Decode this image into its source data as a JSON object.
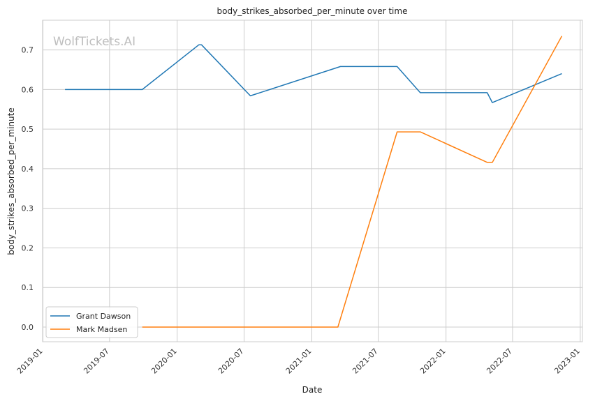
{
  "chart_data": {
    "type": "line",
    "title": "body_strikes_absorbed_per_minute over time",
    "xlabel": "Date",
    "ylabel": "body_strikes_absorbed_per_minute",
    "watermark": "WolfTickets.AI",
    "x_ticks": [
      "2019-01",
      "2019-07",
      "2020-01",
      "2020-07",
      "2021-01",
      "2021-07",
      "2022-01",
      "2022-07",
      "2023-01"
    ],
    "y_ticks": [
      "0.0",
      "0.1",
      "0.2",
      "0.3",
      "0.4",
      "0.5",
      "0.6",
      "0.7"
    ],
    "xlim": [
      "2018-12-31",
      "2023-01-07"
    ],
    "ylim": [
      -0.037,
      0.775
    ],
    "grid": true,
    "legend_position": "lower-left",
    "series": [
      {
        "name": "Grant Dawson",
        "color": "#1f77b4",
        "points": [
          {
            "x": "2019-03-02",
            "y": 0.6
          },
          {
            "x": "2019-09-28",
            "y": 0.6
          },
          {
            "x": "2020-02-29",
            "y": 0.713
          },
          {
            "x": "2020-03-07",
            "y": 0.713
          },
          {
            "x": "2020-07-18",
            "y": 0.584
          },
          {
            "x": "2021-03-20",
            "y": 0.658
          },
          {
            "x": "2021-08-21",
            "y": 0.658
          },
          {
            "x": "2021-10-23",
            "y": 0.592
          },
          {
            "x": "2022-04-23",
            "y": 0.592
          },
          {
            "x": "2022-05-07",
            "y": 0.567
          },
          {
            "x": "2022-11-12",
            "y": 0.64
          }
        ]
      },
      {
        "name": "Mark Madsen",
        "color": "#ff7f0e",
        "points": [
          {
            "x": "2019-09-28",
            "y": 0.0
          },
          {
            "x": "2021-03-13",
            "y": 0.0
          },
          {
            "x": "2021-08-21",
            "y": 0.493
          },
          {
            "x": "2021-10-23",
            "y": 0.493
          },
          {
            "x": "2022-04-23",
            "y": 0.416
          },
          {
            "x": "2022-05-07",
            "y": 0.416
          },
          {
            "x": "2022-11-12",
            "y": 0.735
          }
        ]
      }
    ]
  }
}
